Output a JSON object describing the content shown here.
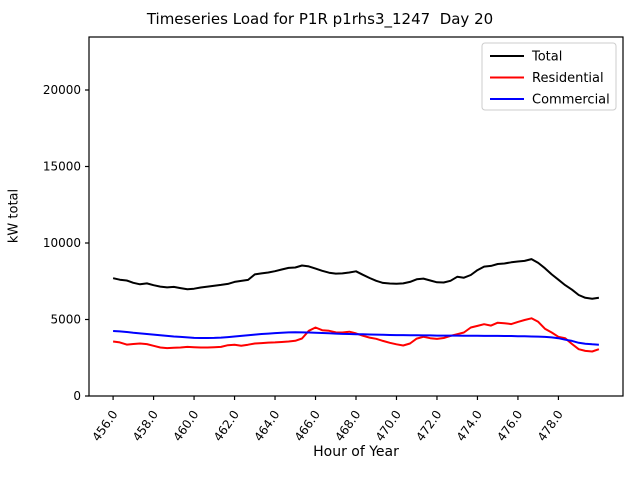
{
  "title": "Timeseries Load for P1R p1rhs3_1247  Day 20",
  "axes": {
    "xlabel": "Hour of Year",
    "ylabel": "kW total"
  },
  "legend": {
    "position": "upper right",
    "entries": [
      {
        "label": "Total",
        "color": "#000000"
      },
      {
        "label": "Residential",
        "color": "#ff0000"
      },
      {
        "label": "Commercial",
        "color": "#0000ff"
      }
    ]
  },
  "chart_data": {
    "type": "line",
    "title": "Timeseries Load for P1R p1rhs3_1247  Day 20",
    "xlabel": "Hour of Year",
    "ylabel": "kW total",
    "grid": false,
    "legend_position": "upper right",
    "xlim": [
      454.81,
      481.19
    ],
    "ylim": [
      0,
      23464
    ],
    "xticks": [
      456,
      458,
      460,
      462,
      464,
      466,
      468,
      470,
      472,
      474,
      476,
      478
    ],
    "xtick_labels": [
      "456.0",
      "458.0",
      "460.0",
      "462.0",
      "464.0",
      "466.0",
      "468.0",
      "470.0",
      "472.0",
      "474.0",
      "476.0",
      "478.0"
    ],
    "yticks": [
      0,
      5000,
      10000,
      15000,
      20000
    ],
    "ytick_labels": [
      "0",
      "5000",
      "10000",
      "15000",
      "20000"
    ],
    "x": [
      456,
      456.33,
      456.67,
      457,
      457.33,
      457.67,
      458,
      458.33,
      458.67,
      459,
      459.33,
      459.67,
      460,
      460.33,
      460.67,
      461,
      461.33,
      461.67,
      462,
      462.33,
      462.67,
      463,
      463.33,
      463.67,
      464,
      464.33,
      464.67,
      465,
      465.33,
      465.67,
      466,
      466.33,
      466.67,
      467,
      467.33,
      467.67,
      468,
      468.33,
      468.67,
      469,
      469.33,
      469.67,
      470,
      470.33,
      470.67,
      471,
      471.33,
      471.67,
      472,
      472.33,
      472.67,
      473,
      473.33,
      473.67,
      474,
      474.33,
      474.67,
      475,
      475.33,
      475.67,
      476,
      476.33,
      476.67,
      477,
      477.33,
      477.67,
      478,
      478.33,
      478.67,
      479,
      479.33,
      479.67,
      480
    ],
    "series": [
      {
        "name": "Total",
        "color": "#000000",
        "values": [
          7700,
          7600,
          7550,
          7400,
          7300,
          7360,
          7240,
          7150,
          7100,
          7130,
          7050,
          6980,
          7010,
          7090,
          7150,
          7210,
          7260,
          7330,
          7460,
          7520,
          7590,
          7950,
          8010,
          8070,
          8160,
          8270,
          8370,
          8400,
          8530,
          8470,
          8330,
          8180,
          8060,
          8000,
          8010,
          8070,
          8150,
          7930,
          7710,
          7530,
          7390,
          7350,
          7340,
          7360,
          7460,
          7630,
          7670,
          7550,
          7430,
          7420,
          7530,
          7790,
          7730,
          7910,
          8230,
          8460,
          8500,
          8630,
          8660,
          8740,
          8790,
          8830,
          8950,
          8700,
          8350,
          7950,
          7600,
          7250,
          6950,
          6600,
          6420,
          6360,
          6420
        ]
      },
      {
        "name": "Residential",
        "color": "#ff0000",
        "values": [
          3560,
          3500,
          3360,
          3400,
          3430,
          3390,
          3280,
          3170,
          3130,
          3150,
          3170,
          3210,
          3190,
          3170,
          3170,
          3190,
          3210,
          3320,
          3350,
          3290,
          3350,
          3430,
          3460,
          3490,
          3500,
          3530,
          3560,
          3610,
          3760,
          4260,
          4480,
          4300,
          4260,
          4160,
          4150,
          4200,
          4090,
          3940,
          3820,
          3740,
          3600,
          3480,
          3380,
          3300,
          3430,
          3750,
          3870,
          3780,
          3730,
          3790,
          3930,
          4040,
          4150,
          4480,
          4580,
          4690,
          4600,
          4790,
          4760,
          4700,
          4840,
          4970,
          5080,
          4850,
          4400,
          4150,
          3870,
          3780,
          3400,
          3060,
          2950,
          2910,
          3060
        ]
      },
      {
        "name": "Commercial",
        "color": "#0000ff",
        "values": [
          4250,
          4220,
          4180,
          4130,
          4090,
          4050,
          4010,
          3970,
          3930,
          3890,
          3860,
          3830,
          3800,
          3790,
          3790,
          3800,
          3820,
          3850,
          3890,
          3930,
          3970,
          4010,
          4050,
          4080,
          4110,
          4140,
          4160,
          4170,
          4160,
          4150,
          4140,
          4120,
          4100,
          4080,
          4060,
          4050,
          4040,
          4030,
          4020,
          4010,
          4000,
          3990,
          3980,
          3980,
          3970,
          3970,
          3960,
          3960,
          3950,
          3950,
          3950,
          3950,
          3940,
          3940,
          3940,
          3930,
          3930,
          3930,
          3920,
          3920,
          3910,
          3900,
          3890,
          3880,
          3860,
          3830,
          3780,
          3680,
          3600,
          3480,
          3420,
          3380,
          3350
        ]
      }
    ]
  }
}
